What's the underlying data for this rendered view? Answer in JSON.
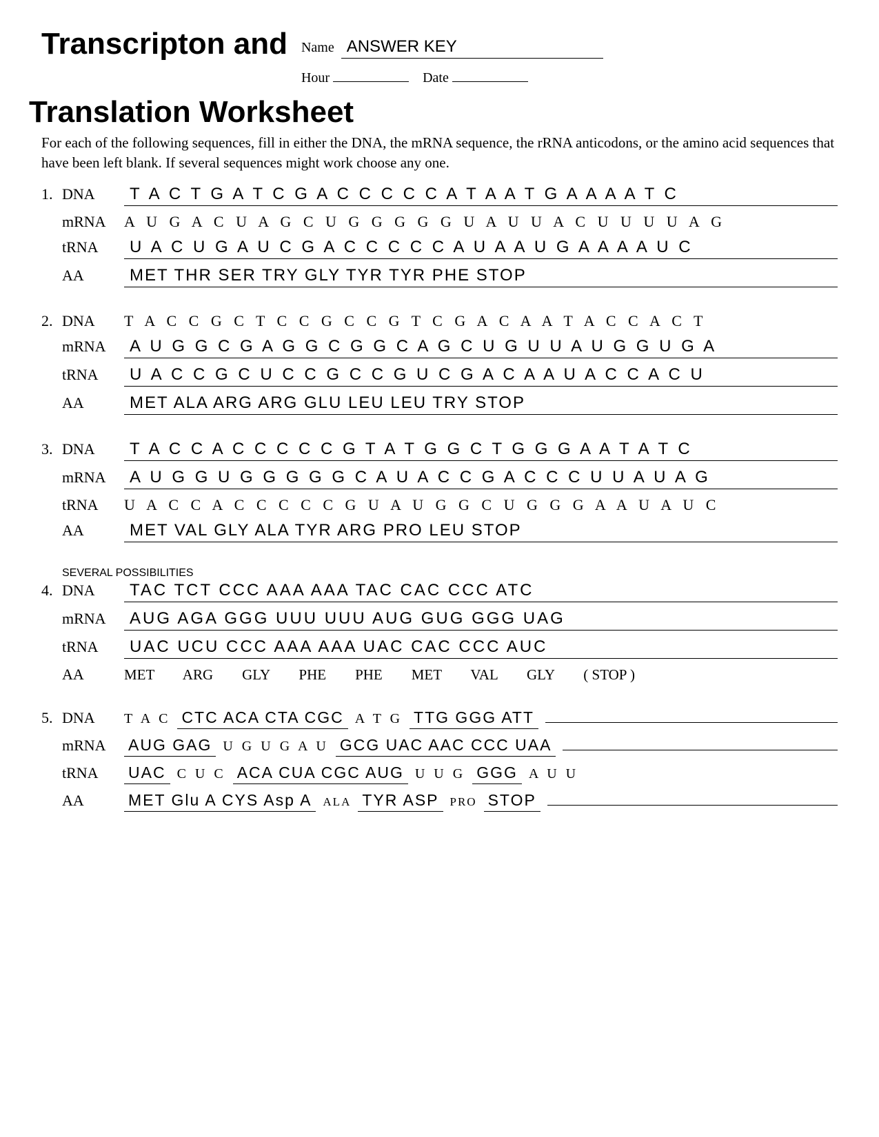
{
  "title_line1": "Transcripton and",
  "title_line2": "Translation Worksheet",
  "meta": {
    "name_label": "Name",
    "name_value": "ANSWER KEY",
    "hour_label": "Hour",
    "hour_value": "",
    "date_label": "Date",
    "date_value": ""
  },
  "instructions": "For each of the following sequences, fill in either the DNA, the mRNA sequence, the rRNA anticodons, or the amino acid sequences that have been left blank.  If several sequences might work choose any one.",
  "labels": {
    "dna": "DNA",
    "mrna": "mRNA",
    "trna": "tRNA",
    "aa": "AA"
  },
  "note4": "SEVERAL POSSIBILITIES",
  "problems": [
    {
      "num": "1.",
      "dna": {
        "text": "T A C  T G A  T C G  A C C  C C C  A T A  A T G  A A A A T C",
        "style": "ul-sans"
      },
      "mrna": {
        "text": "A  U  G    A  C  U    A  G  C    U  G  G    G  G  G    U  A  U    U  A  C    U  U  U    U  A  G",
        "style": "serif"
      },
      "trna": {
        "text": "U A C  U G A  U C G  A C C  C C C  A U A  A U G   A A A  A U C",
        "style": "ul-sans"
      },
      "aa": {
        "text": "MET  THR  SER  TRY  GLY  TYR  TYR  PHE  STOP",
        "style": "ul-sans"
      }
    },
    {
      "num": "2.",
      "dna": {
        "text": "T  A  C    C  G  C    T  C  C    G  C  C    G  T  C    G  A  C    A  A  T    A  C  C    A  C  T",
        "style": "serif"
      },
      "mrna": {
        "text": "A U G  G C G  A G G  C G G  C A G  C U G  U U A  U G G  U G A",
        "style": "ul-sans"
      },
      "trna": {
        "text": "U A C  C G C  U C C  G C C  G U C  G A C  A A U  A C C  A C U",
        "style": "ul-sans"
      },
      "aa": {
        "text": "MET  ALA  ARG  ARG  GLU  LEU  LEU  TRY  STOP",
        "style": "ul-sans"
      }
    },
    {
      "num": "3.",
      "dna": {
        "text": "T A C  C A C  C C C  C G T  A T G  G C T  G G G  A A T  A T C",
        "style": "ul-sans"
      },
      "mrna": {
        "text": "A U G   G U G   G G G   G C A   U A C   C G A   C C C   U U A   U A G",
        "style": "ul-sans"
      },
      "trna": {
        "text": "U  A  C    C  A  C    C  C  C    C  G  U    A  U  G    G  C  U    G  G  G    A  A  U    A  U  C",
        "style": "serif"
      },
      "aa": {
        "text": "MET  VAL  GLY  ALA  TYR  ARG  PRO  LEU  STOP",
        "style": "ul-sans"
      }
    },
    {
      "num": "4.",
      "dna": {
        "text": "TAC  TCT  CCC  AAA  AAA  TAC  CAC  CCC  ATC",
        "style": "ul-sans"
      },
      "mrna": {
        "text": "AUG  AGA  GGG  UUU  UUU  AUG  GUG  GGG  UAG",
        "style": "ul-sans"
      },
      "trna": {
        "text": "UAC  UCU  CCC  AAA  AAA  UAC  CAC  CCC  AUC",
        "style": "ul-sans"
      },
      "aa": {
        "text": "MET        ARG        GLY        PHE        PHE        MET        VAL        GLY        ( STOP )",
        "style": "aa-serif"
      }
    }
  ],
  "p5": {
    "num": "5.",
    "dna": {
      "pre": "T  A  C",
      "frag1": "CTC  ACA  CTA  CGC",
      "mid": "A  T  G",
      "frag2": "TTG  GGG  ATT"
    },
    "mrna": {
      "frag1": "AUG  GAG",
      "mid": "U  G  U    G  A  U",
      "frag2": "GCG  UAC  AAC  CCC  UAA"
    },
    "trna": {
      "frag1": "UAC",
      "mid1": "C  U  C",
      "frag2": "ACA  CUA  CGC  AUG",
      "mid2": "U  U  G",
      "frag3": "GGG",
      "post": "A  U  U"
    },
    "aa": {
      "frag1": "MET  Glu A  CYS  Asp A",
      "mid1": "ALA",
      "frag2": "TYR  ASP",
      "mid2": "PRO",
      "frag3": "STOP"
    }
  },
  "colors": {
    "text": "#000000",
    "bg": "#ffffff",
    "line": "#000000"
  },
  "typography": {
    "title_font": "Arial",
    "body_font": "Times New Roman",
    "title_size_pt": 33,
    "body_size_pt": 16,
    "seq_size_pt": 18
  }
}
